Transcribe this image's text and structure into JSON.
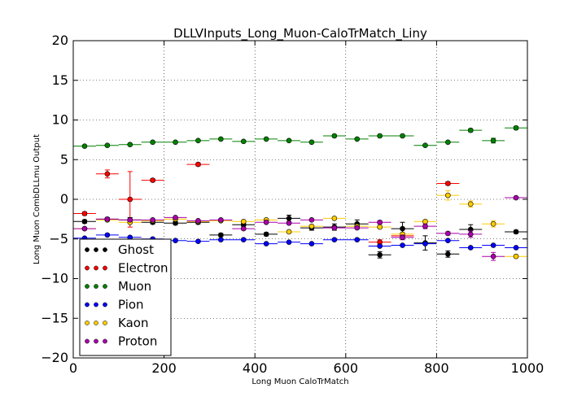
{
  "chart_data": {
    "type": "scatter",
    "title": "DLLVInputs_Long_Muon-CaloTrMatch_Liny",
    "xlabel": "Long Muon CaloTrMatch",
    "ylabel": "Long Muon CombDLLmu Output",
    "xlim": [
      0,
      1000
    ],
    "ylim": [
      -20,
      20
    ],
    "xticks": [
      0,
      200,
      400,
      600,
      800,
      1000
    ],
    "yticks": [
      -20,
      -15,
      -10,
      -5,
      0,
      5,
      10,
      15,
      20
    ],
    "grid": true,
    "legend_position": "lower-left",
    "x": [
      25,
      75,
      125,
      175,
      225,
      275,
      325,
      375,
      425,
      475,
      525,
      575,
      625,
      675,
      725,
      775,
      825,
      875,
      925,
      975
    ],
    "x_halfwidth": 25,
    "series": [
      {
        "name": "Ghost",
        "color": "#000000",
        "values": [
          -2.8,
          -2.5,
          -2.6,
          -2.9,
          -3.0,
          -2.9,
          -4.5,
          -3.2,
          -4.4,
          -2.4,
          -3.6,
          -3.5,
          -3.1,
          -7.0,
          -3.7,
          -5.5,
          -6.9,
          -3.8,
          null,
          -4.1
        ],
        "errors": [
          0.2,
          0.2,
          0.3,
          0.2,
          0.2,
          0.2,
          0.2,
          0.2,
          0.2,
          0.4,
          0.3,
          0.4,
          0.5,
          0.4,
          0.8,
          0.9,
          0.4,
          0.6,
          null,
          0.2
        ]
      },
      {
        "name": "Electron",
        "color": "#ff0000",
        "values": [
          -1.8,
          3.2,
          0.0,
          2.4,
          null,
          4.4,
          null,
          null,
          null,
          null,
          null,
          null,
          null,
          -5.4,
          -4.6,
          null,
          2.0,
          null,
          null,
          null
        ],
        "errors": [
          0.2,
          0.5,
          3.5,
          0.2,
          null,
          0.2,
          null,
          null,
          null,
          null,
          null,
          null,
          null,
          0.3,
          0.4,
          null,
          0.2,
          null,
          null,
          null
        ]
      },
      {
        "name": "Muon",
        "color": "#008000",
        "values": [
          6.7,
          6.8,
          6.9,
          7.2,
          7.2,
          7.4,
          7.6,
          7.3,
          7.6,
          7.4,
          7.2,
          8.0,
          7.6,
          8.0,
          8.0,
          6.8,
          7.2,
          8.7,
          7.4,
          9.0
        ],
        "errors": [
          0.1,
          0.1,
          0.1,
          0.1,
          0.1,
          0.1,
          0.1,
          0.1,
          0.1,
          0.1,
          0.1,
          0.1,
          0.1,
          0.1,
          0.1,
          0.1,
          0.1,
          0.2,
          0.3,
          0.2
        ]
      },
      {
        "name": "Pion",
        "color": "#0000ff",
        "values": [
          -4.9,
          -4.5,
          -4.8,
          -5.0,
          -5.2,
          -5.3,
          -5.1,
          -5.1,
          -5.6,
          -5.4,
          -5.6,
          -5.1,
          -5.1,
          -5.9,
          -5.8,
          -5.6,
          -5.2,
          -6.1,
          -5.8,
          -6.1
        ],
        "errors": [
          0.1,
          0.1,
          0.1,
          0.1,
          0.1,
          0.1,
          0.1,
          0.1,
          0.1,
          0.1,
          0.1,
          0.1,
          0.1,
          0.1,
          0.1,
          0.1,
          0.1,
          0.1,
          0.1,
          0.1
        ]
      },
      {
        "name": "Kaon",
        "color": "#ffcc00",
        "values": [
          -3.7,
          -2.6,
          -2.9,
          -2.7,
          -2.5,
          -2.8,
          -2.7,
          -2.8,
          -2.6,
          -4.1,
          -3.4,
          -2.4,
          -3.4,
          -3.5,
          -4.4,
          -2.8,
          0.5,
          -0.6,
          -3.1,
          -7.2
        ],
        "errors": [
          0.1,
          0.1,
          0.1,
          0.1,
          0.1,
          0.1,
          0.1,
          0.1,
          0.1,
          0.1,
          0.1,
          0.1,
          0.1,
          0.1,
          0.2,
          0.2,
          0.6,
          0.4,
          0.4,
          0.2
        ]
      },
      {
        "name": "Proton",
        "color": "#aa00aa",
        "values": [
          -3.7,
          -2.5,
          -2.6,
          -2.6,
          -2.3,
          -2.7,
          -2.6,
          -3.7,
          -2.9,
          -3.0,
          -2.6,
          -3.6,
          -3.6,
          -2.9,
          -4.8,
          -3.4,
          -4.3,
          -4.4,
          -7.2,
          0.2
        ],
        "errors": [
          0.1,
          0.1,
          0.1,
          0.1,
          0.1,
          0.1,
          0.1,
          0.1,
          0.1,
          0.1,
          0.1,
          0.1,
          0.1,
          0.2,
          0.3,
          0.3,
          0.2,
          0.4,
          0.5,
          0.1
        ]
      }
    ]
  }
}
